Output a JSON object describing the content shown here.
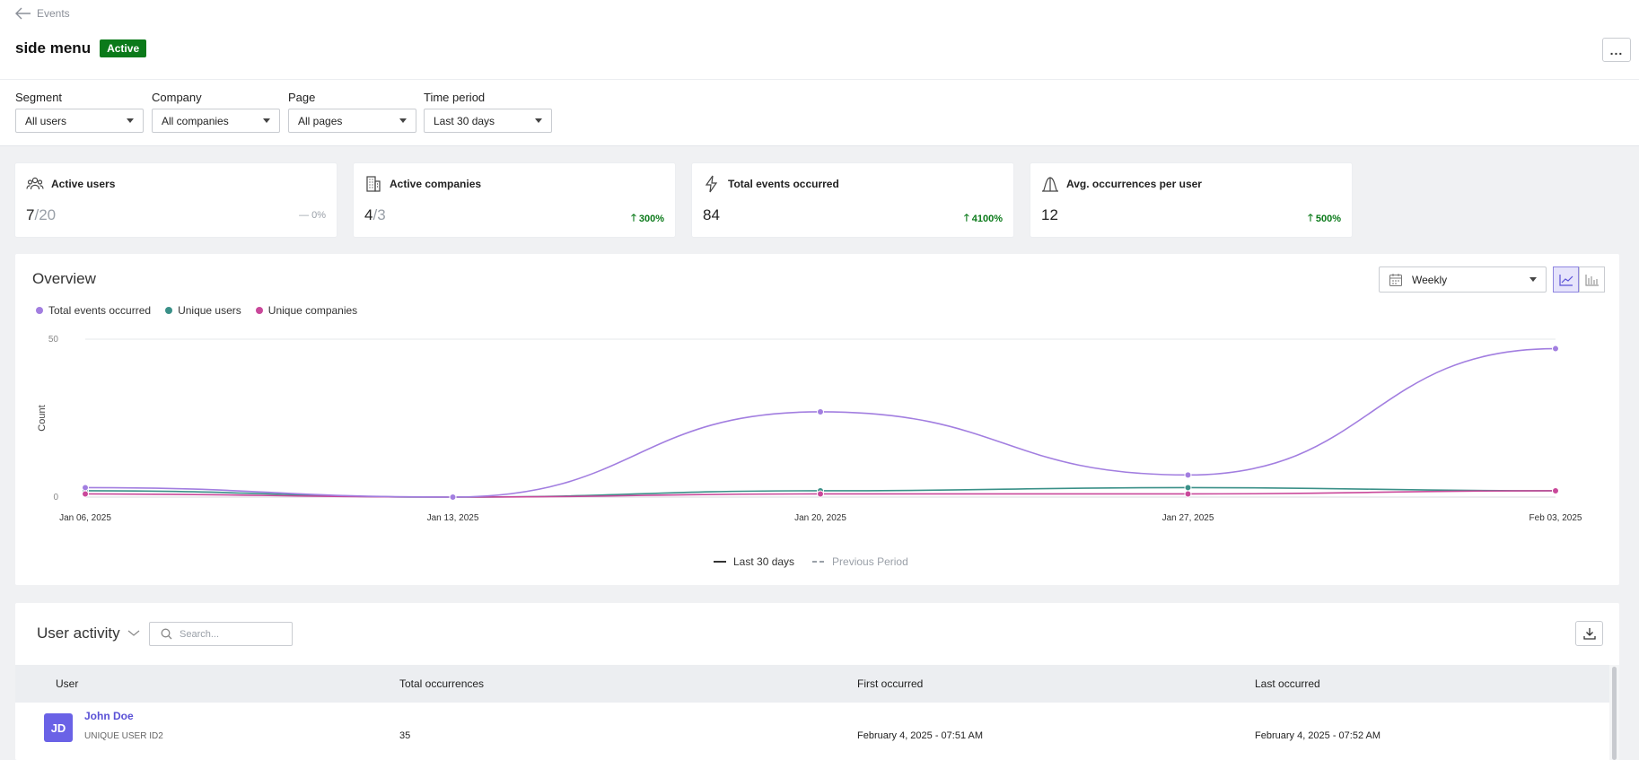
{
  "header": {
    "back_label": "Events",
    "title": "side menu",
    "status": "Active",
    "more_label": "..."
  },
  "filters": [
    {
      "label": "Segment",
      "value": "All users"
    },
    {
      "label": "Company",
      "value": "All companies"
    },
    {
      "label": "Page",
      "value": "All pages"
    },
    {
      "label": "Time period",
      "value": "Last 30 days"
    }
  ],
  "metrics": [
    {
      "label": "Active users",
      "value": "7",
      "denominator": "/20",
      "delta": "0%",
      "trend": "flat",
      "icon": "users-icon"
    },
    {
      "label": "Active companies",
      "value": "4",
      "denominator": "/3",
      "delta": "300%",
      "trend": "up",
      "icon": "building-icon"
    },
    {
      "label": "Total events occurred",
      "value": "84",
      "denominator": "",
      "delta": "4100%",
      "trend": "up",
      "icon": "bolt-icon"
    },
    {
      "label": "Avg. occurrences per user",
      "value": "12",
      "denominator": "",
      "delta": "500%",
      "trend": "up",
      "icon": "distribution-icon"
    }
  ],
  "overview": {
    "title": "Overview",
    "interval": "Weekly",
    "period_current": "Last 30 days",
    "period_previous": "Previous Period"
  },
  "colors": {
    "total_events": "#a27ee0",
    "unique_users": "#3a9088",
    "unique_companies": "#c9489a",
    "accent": "#5a51d6",
    "success": "#0b7a1a"
  },
  "chart_data": {
    "type": "line",
    "x": [
      "Jan 06, 2025",
      "Jan 13, 2025",
      "Jan 20, 2025",
      "Jan 27, 2025",
      "Feb 03, 2025"
    ],
    "ylabel": "Count",
    "ylim": [
      0,
      50
    ],
    "yticks": [
      "0",
      "50"
    ],
    "legend_position": "top-left",
    "grid": true,
    "series": [
      {
        "name": "Total events occurred",
        "color": "#a27ee0",
        "values": [
          3,
          0,
          27,
          7,
          47
        ]
      },
      {
        "name": "Unique users",
        "color": "#3a9088",
        "values": [
          2,
          0,
          2,
          3,
          2
        ]
      },
      {
        "name": "Unique companies",
        "color": "#c9489a",
        "values": [
          1,
          0,
          1,
          1,
          2
        ]
      }
    ]
  },
  "activity": {
    "title": "User activity",
    "search_placeholder": "Search...",
    "columns": [
      "User",
      "Total occurrences",
      "First occurred",
      "Last occurred"
    ],
    "rows": [
      {
        "initials": "JD",
        "name": "John Doe",
        "id": "UNIQUE USER ID2",
        "total": "35",
        "first": "February 4, 2025 - 07:51 AM",
        "last": "February 4, 2025 - 07:52 AM"
      }
    ]
  }
}
